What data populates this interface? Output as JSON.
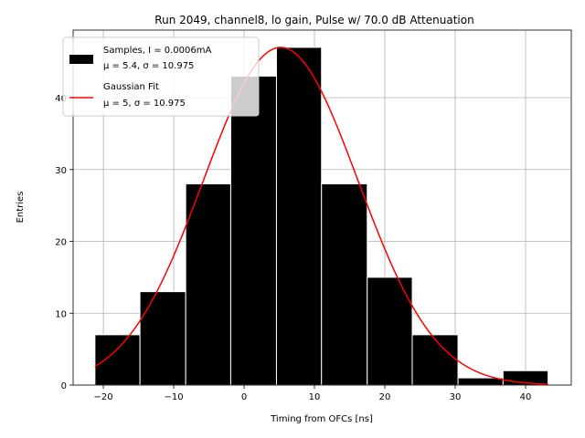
{
  "chart_data": {
    "type": "bar",
    "title": "Run 2049, channel8, lo gain, Pulse w/ 70.0 dB Attenuation",
    "xlabel": "Timing from OFCs [ns]",
    "ylabel": "Entries",
    "xlim": [
      -24.3,
      46.5
    ],
    "ylim": [
      0,
      49.4
    ],
    "xticks": [
      -20,
      -10,
      0,
      10,
      20,
      30,
      40
    ],
    "yticks": [
      0,
      10,
      20,
      30,
      40
    ],
    "grid": true,
    "legend_position": "top-left",
    "colors": {
      "bars": "#000000",
      "bar_edge": "#ffffff",
      "fit": "#ff0000",
      "grid": "#b0b0b0"
    },
    "histogram": {
      "bin_edges": [
        -21.2,
        -14.8,
        -8.3,
        -1.9,
        4.6,
        11.0,
        17.5,
        23.9,
        30.4,
        36.8,
        43.2
      ],
      "counts": [
        7,
        13,
        28,
        43,
        47,
        28,
        15,
        7,
        1,
        2
      ]
    },
    "fit": {
      "mu": 5.2,
      "sigma": 10.975,
      "amplitude": 47.0,
      "x_range": [
        -21.2,
        43.2
      ]
    },
    "legend": [
      {
        "kind": "bar",
        "lines": [
          "Samples, I = 0.0006mA",
          "μ = 5.4, σ = 10.975"
        ]
      },
      {
        "kind": "line",
        "lines": [
          "Gaussian Fit",
          "μ = 5, σ = 10.975"
        ]
      }
    ]
  }
}
